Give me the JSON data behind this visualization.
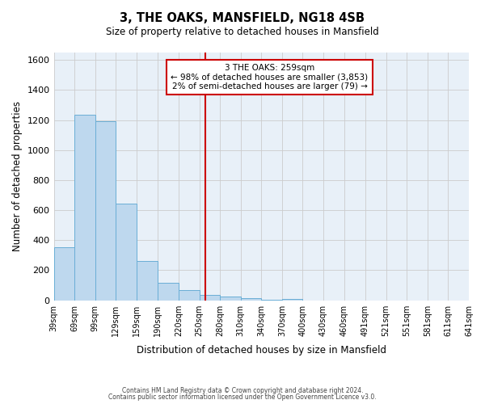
{
  "title": "3, THE OAKS, MANSFIELD, NG18 4SB",
  "subtitle": "Size of property relative to detached houses in Mansfield",
  "xlabel": "Distribution of detached houses by size in Mansfield",
  "ylabel": "Number of detached properties",
  "bar_values": [
    355,
    1235,
    1190,
    645,
    260,
    115,
    70,
    35,
    25,
    15,
    5,
    10,
    0,
    0,
    0,
    0,
    0,
    0,
    0,
    0
  ],
  "bin_labels": [
    "39sqm",
    "69sqm",
    "99sqm",
    "129sqm",
    "159sqm",
    "190sqm",
    "220sqm",
    "250sqm",
    "280sqm",
    "310sqm",
    "340sqm",
    "370sqm",
    "400sqm",
    "430sqm",
    "460sqm",
    "491sqm",
    "521sqm",
    "551sqm",
    "581sqm",
    "611sqm",
    "641sqm"
  ],
  "bin_edges": [
    39,
    69,
    99,
    129,
    159,
    190,
    220,
    250,
    280,
    310,
    340,
    370,
    400,
    430,
    460,
    491,
    521,
    551,
    581,
    611,
    641
  ],
  "bar_color": "#bed8ee",
  "bar_edgecolor": "#6aaed6",
  "vline_x": 259,
  "vline_color": "#cc0000",
  "annotation_text": "3 THE OAKS: 259sqm\n← 98% of detached houses are smaller (3,853)\n2% of semi-detached houses are larger (79) →",
  "ylim": [
    0,
    1650
  ],
  "yticks": [
    0,
    200,
    400,
    600,
    800,
    1000,
    1200,
    1400,
    1600
  ],
  "background_color": "#ffffff",
  "grid_color": "#cccccc",
  "footer_line1": "Contains HM Land Registry data © Crown copyright and database right 2024.",
  "footer_line2": "Contains public sector information licensed under the Open Government Licence v3.0."
}
